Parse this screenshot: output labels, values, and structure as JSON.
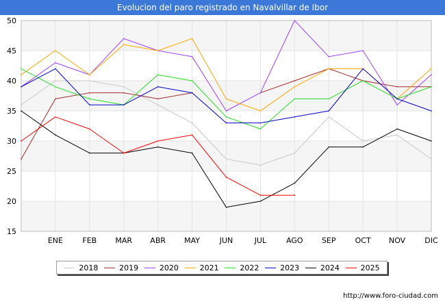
{
  "chart_data": {
    "type": "line",
    "title": "Evolucion del paro registrado en Navalvillar de Ibor",
    "categories": [
      "",
      "ENE",
      "FEB",
      "MAR",
      "ABR",
      "MAY",
      "JUN",
      "JUL",
      "AGO",
      "SEP",
      "OCT",
      "NOV",
      "DIC"
    ],
    "ylim": [
      15,
      50
    ],
    "yticks": [
      15,
      20,
      25,
      30,
      35,
      40,
      45,
      50
    ],
    "series": [
      {
        "name": "2018",
        "color": "#c8c8c8",
        "values": [
          36,
          40,
          40,
          39,
          36,
          33,
          27,
          26,
          28,
          34,
          30,
          31,
          27
        ]
      },
      {
        "name": "2019",
        "color": "#a52a2a",
        "values": [
          27,
          37,
          38,
          38,
          37,
          38,
          null,
          38,
          40,
          42,
          40,
          39,
          39
        ]
      },
      {
        "name": "2020",
        "color": "#a040ff",
        "values": [
          39,
          43,
          41,
          47,
          45,
          44,
          35,
          38,
          50,
          44,
          45,
          36,
          41
        ]
      },
      {
        "name": "2021",
        "color": "#ffa500",
        "values": [
          41,
          45,
          41,
          46,
          45,
          47,
          37,
          35,
          39,
          42,
          42,
          37,
          42
        ]
      },
      {
        "name": "2022",
        "color": "#22dd22",
        "values": [
          42,
          39,
          37,
          36,
          41,
          40,
          34,
          32,
          37,
          37,
          40,
          37,
          39
        ]
      },
      {
        "name": "2023",
        "color": "#0000cc",
        "values": [
          39,
          42,
          36,
          36,
          39,
          38,
          33,
          33,
          34,
          35,
          42,
          37,
          35
        ]
      },
      {
        "name": "2024",
        "color": "#000000",
        "values": [
          35,
          31,
          28,
          28,
          29,
          28,
          19,
          20,
          23,
          29,
          29,
          32,
          30
        ]
      },
      {
        "name": "2025",
        "color": "#ff0000",
        "values": [
          30,
          34,
          32,
          28,
          30,
          31,
          24,
          21,
          21,
          null,
          null,
          null,
          null
        ]
      }
    ]
  },
  "footer": {
    "url": "http://www.foro-ciudad.com"
  }
}
